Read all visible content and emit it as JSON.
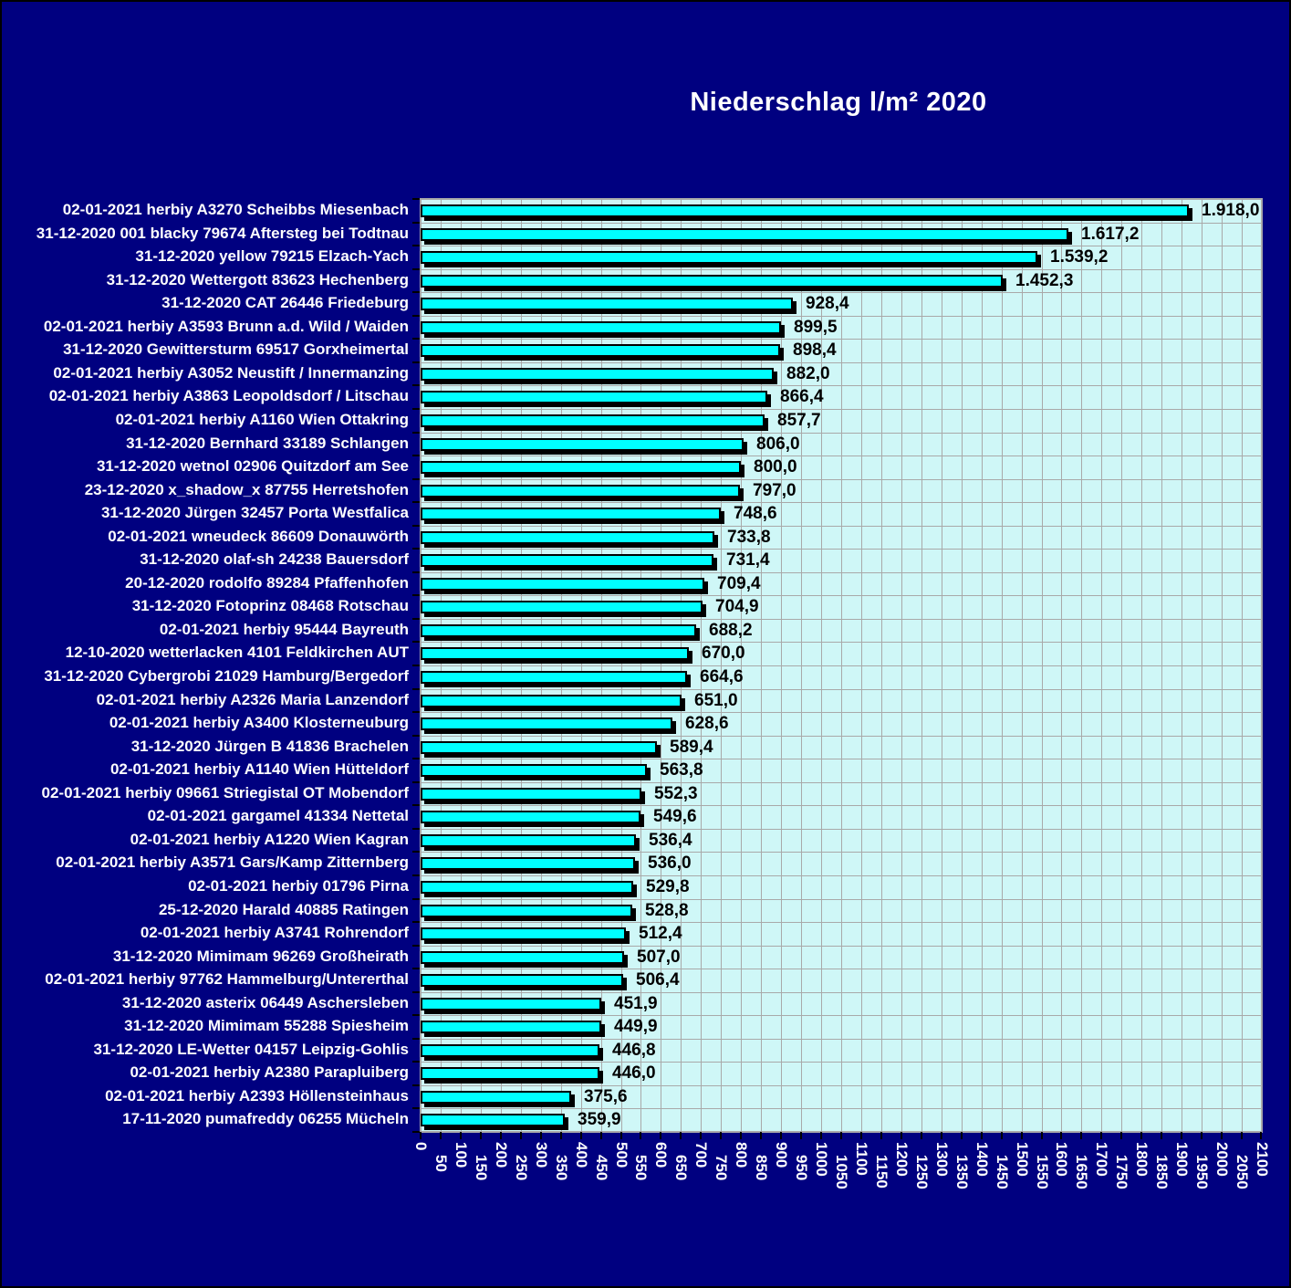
{
  "title": "Niederschlag l/m² 2020",
  "chart_data": {
    "type": "bar",
    "orientation": "horizontal",
    "title": "Niederschlag l/m² 2020",
    "categories": [
      "02-01-2021 herbiy A3270 Scheibbs Miesenbach",
      "31-12-2020 001 blacky 79674 Aftersteg bei Todtnau",
      "31-12-2020 yellow 79215 Elzach-Yach",
      "31-12-2020 Wettergott 83623 Hechenberg",
      "31-12-2020 CAT 26446 Friedeburg",
      "02-01-2021 herbiy A3593 Brunn a.d. Wild / Waiden",
      "31-12-2020 Gewittersturm 69517 Gorxheimertal",
      "02-01-2021 herbiy A3052 Neustift / Innermanzing",
      "02-01-2021 herbiy A3863 Leopoldsdorf / Litschau",
      "02-01-2021 herbiy A1160 Wien Ottakring",
      "31-12-2020 Bernhard 33189 Schlangen",
      "31-12-2020 wetnol 02906 Quitzdorf am See",
      "23-12-2020 x_shadow_x 87755 Herretshofen",
      "31-12-2020 Jürgen 32457 Porta Westfalica",
      "02-01-2021 wneudeck 86609 Donauwörth",
      "31-12-2020 olaf-sh 24238 Bauersdorf",
      "20-12-2020 rodolfo 89284 Pfaffenhofen",
      "31-12-2020 Fotoprinz 08468 Rotschau",
      "02-01-2021 herbiy 95444 Bayreuth",
      "12-10-2020 wetterlacken 4101 Feldkirchen AUT",
      "31-12-2020 Cybergrobi 21029 Hamburg/Bergedorf",
      "02-01-2021 herbiy A2326 Maria Lanzendorf",
      "02-01-2021 herbiy A3400 Klosterneuburg",
      "31-12-2020 Jürgen B 41836 Brachelen",
      "02-01-2021 herbiy A1140 Wien Hütteldorf",
      "02-01-2021 herbiy 09661 Striegistal OT Mobendorf",
      "02-01-2021 gargamel 41334 Nettetal",
      "02-01-2021 herbiy A1220 Wien Kagran",
      "02-01-2021 herbiy A3571 Gars/Kamp Zitternberg",
      "02-01-2021 herbiy 01796 Pirna",
      "25-12-2020 Harald 40885 Ratingen",
      "02-01-2021 herbiy A3741 Rohrendorf",
      "31-12-2020 Mimimam 96269 Großheirath",
      "02-01-2021 herbiy 97762 Hammelburg/Untererthal",
      "31-12-2020 asterix 06449 Aschersleben",
      "31-12-2020 Mimimam 55288 Spiesheim",
      "31-12-2020 LE-Wetter 04157 Leipzig-Gohlis",
      "02-01-2021 herbiy A2380 Parapluiberg",
      "02-01-2021 herbiy A2393 Höllensteinhaus",
      "17-11-2020 pumafreddy 06255 Mücheln"
    ],
    "values": [
      1918.0,
      1617.2,
      1539.2,
      1452.3,
      928.4,
      899.5,
      898.4,
      882.0,
      866.4,
      857.7,
      806.0,
      800.0,
      797.0,
      748.6,
      733.8,
      731.4,
      709.4,
      704.9,
      688.2,
      670.0,
      664.6,
      651.0,
      628.6,
      589.4,
      563.8,
      552.3,
      549.6,
      536.4,
      536.0,
      529.8,
      528.8,
      512.4,
      507.0,
      506.4,
      451.9,
      449.9,
      446.8,
      446.0,
      375.6,
      359.9
    ],
    "value_labels": [
      "1.918,0",
      "1.617,2",
      "1.539,2",
      "1.452,3",
      "928,4",
      "899,5",
      "898,4",
      "882,0",
      "866,4",
      "857,7",
      "806,0",
      "800,0",
      "797,0",
      "748,6",
      "733,8",
      "731,4",
      "709,4",
      "704,9",
      "688,2",
      "670,0",
      "664,6",
      "651,0",
      "628,6",
      "589,4",
      "563,8",
      "552,3",
      "549,6",
      "536,4",
      "536,0",
      "529,8",
      "528,8",
      "512,4",
      "507,0",
      "506,4",
      "451,9",
      "449,9",
      "446,8",
      "446,0",
      "375,6",
      "359,9"
    ],
    "xlabel": "",
    "ylabel": "",
    "xlim": [
      0,
      2100
    ],
    "x_tick_step": 50,
    "x_tick_labels": [
      "0",
      "50",
      "100",
      "150",
      "200",
      "250",
      "300",
      "350",
      "400",
      "450",
      "500",
      "550",
      "600",
      "650",
      "700",
      "750",
      "800",
      "850",
      "900",
      "950",
      "1000",
      "1050",
      "1100",
      "1150",
      "1200",
      "1250",
      "1300",
      "1350",
      "1400",
      "1450",
      "1500",
      "1550",
      "1600",
      "1650",
      "1700",
      "1750",
      "1800",
      "1850",
      "1900",
      "1950",
      "2000",
      "2050",
      "2100"
    ],
    "grid": true,
    "legend": false,
    "colors": {
      "background": "#000080",
      "plot_background": "#CFF7F7",
      "bar_fill": "#00FFFF",
      "bar_border": "#000000",
      "bar_shadow": "#000000",
      "gridline": "#A9A9A9",
      "category_label": "#FFFFFF",
      "value_label": "#000000",
      "tick_label": "#FFFFFF",
      "title_color": "#FFFFFF"
    }
  }
}
